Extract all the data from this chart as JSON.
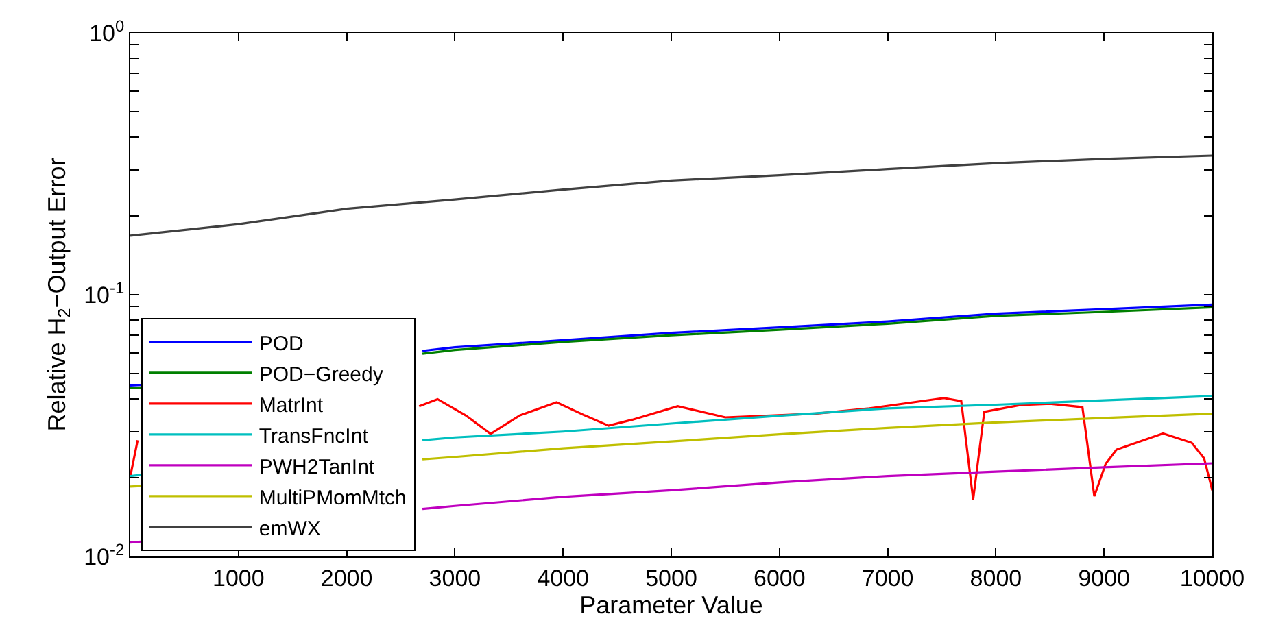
{
  "chart_data": {
    "type": "line",
    "xlabel": "Parameter Value",
    "ylabel": "Relative H$_{2}$−Output Error",
    "log": "y",
    "legend": "bottom left",
    "marker": "none",
    "line_style": "solid",
    "xlim": [
      0,
      10000
    ],
    "xticks": [
      1000,
      2000,
      3000,
      4000,
      5000,
      6000,
      7000,
      8000,
      9000,
      10000
    ],
    "ylim": [
      0.01,
      1
    ],
    "yticks": [
      {
        "value": 0.01,
        "label": "10$^{-2}$"
      },
      {
        "value": 0.02,
        "label": null
      },
      {
        "value": 0.03,
        "label": null
      },
      {
        "value": 0.04,
        "label": null
      },
      {
        "value": 0.05,
        "label": null
      },
      {
        "value": 0.06,
        "label": null
      },
      {
        "value": 0.07,
        "label": null
      },
      {
        "value": 0.08,
        "label": null
      },
      {
        "value": 0.09,
        "label": null
      },
      {
        "value": 0.1,
        "label": "10$^{-1}$"
      },
      {
        "value": 0.2,
        "label": null
      },
      {
        "value": 0.3,
        "label": null
      },
      {
        "value": 0.4,
        "label": null
      },
      {
        "value": 0.5,
        "label": null
      },
      {
        "value": 0.6,
        "label": null
      },
      {
        "value": 0.7,
        "label": null
      },
      {
        "value": 0.8,
        "label": null
      },
      {
        "value": 0.9,
        "label": null
      },
      {
        "value": 1,
        "label": "10$^{0}$"
      }
    ],
    "series": [
      {
        "name": "POD",
        "color": "#0000ff",
        "x": [
          0,
          100,
          1000,
          2700,
          3000,
          4000,
          5000,
          6000,
          7000,
          8000,
          9000,
          10000
        ],
        "values": [
          0.045,
          0.0452,
          null,
          0.061,
          0.063,
          0.067,
          0.0715,
          0.075,
          0.079,
          0.0847,
          0.088,
          0.0917
        ]
      },
      {
        "name": "POD−Greedy",
        "color": "#008000",
        "x": [
          0,
          100,
          1000,
          2700,
          3000,
          4000,
          5000,
          6000,
          7000,
          8000,
          9000,
          10000
        ],
        "values": [
          0.044,
          0.0442,
          null,
          0.0595,
          0.0615,
          0.066,
          0.07,
          0.0735,
          0.0775,
          0.083,
          0.086,
          0.0895
        ]
      },
      {
        "name": "MatrInt",
        "color": "#ff0000",
        "x": [
          0,
          68,
          1000,
          2670,
          2840,
          3100,
          3330,
          3600,
          3940,
          4200,
          4420,
          4640,
          5060,
          5500,
          6330,
          6830,
          7520,
          7680,
          7790,
          7893,
          8230,
          8500,
          8800,
          8910,
          9015,
          9115,
          9545,
          9810,
          9925,
          10000
        ],
        "values": [
          0.0202,
          0.0278,
          null,
          0.0375,
          0.0399,
          0.0346,
          0.0294,
          0.0346,
          0.0388,
          0.0346,
          0.0316,
          0.0333,
          0.0375,
          0.034,
          0.0351,
          0.0368,
          0.0403,
          0.0392,
          0.0165,
          0.0357,
          0.0379,
          0.0383,
          0.0372,
          0.017,
          0.0226,
          0.0256,
          0.0295,
          0.0272,
          0.0237,
          0.0179
        ]
      },
      {
        "name": "TransFncInt",
        "color": "#00bfbf",
        "x": [
          0,
          100,
          1000,
          2700,
          3000,
          4000,
          5000,
          6000,
          7000,
          8000,
          9000,
          10000
        ],
        "values": [
          0.0203,
          0.0205,
          null,
          0.0278,
          0.0285,
          0.03,
          0.0322,
          0.0345,
          0.0368,
          0.038,
          0.0395,
          0.041
        ]
      },
      {
        "name": "PWH2TanInt",
        "color": "#bf00bf",
        "x": [
          0,
          100,
          1000,
          2700,
          3000,
          4000,
          5000,
          6000,
          7000,
          8000,
          9000,
          10000
        ],
        "values": [
          0.0113,
          0.0114,
          null,
          0.0152,
          0.0156,
          0.0169,
          0.0179,
          0.0192,
          0.0203,
          0.0211,
          0.0219,
          0.0227
        ]
      },
      {
        "name": "MultiPMomMtch",
        "color": "#bfbf00",
        "x": [
          0,
          100,
          1000,
          2700,
          3000,
          4000,
          5000,
          6000,
          7000,
          8000,
          9000,
          10000
        ],
        "values": [
          0.0185,
          0.0186,
          null,
          0.0235,
          0.024,
          0.0259,
          0.0275,
          0.0293,
          0.031,
          0.0325,
          0.0338,
          0.0351
        ]
      },
      {
        "name": "emWX",
        "color": "#404040",
        "x": [
          0,
          1000,
          2000,
          3000,
          4000,
          5000,
          6000,
          7000,
          8000,
          9000,
          10000
        ],
        "values": [
          0.168,
          0.186,
          0.213,
          0.231,
          0.252,
          0.273,
          0.286,
          0.302,
          0.318,
          0.33,
          0.34
        ]
      }
    ]
  }
}
